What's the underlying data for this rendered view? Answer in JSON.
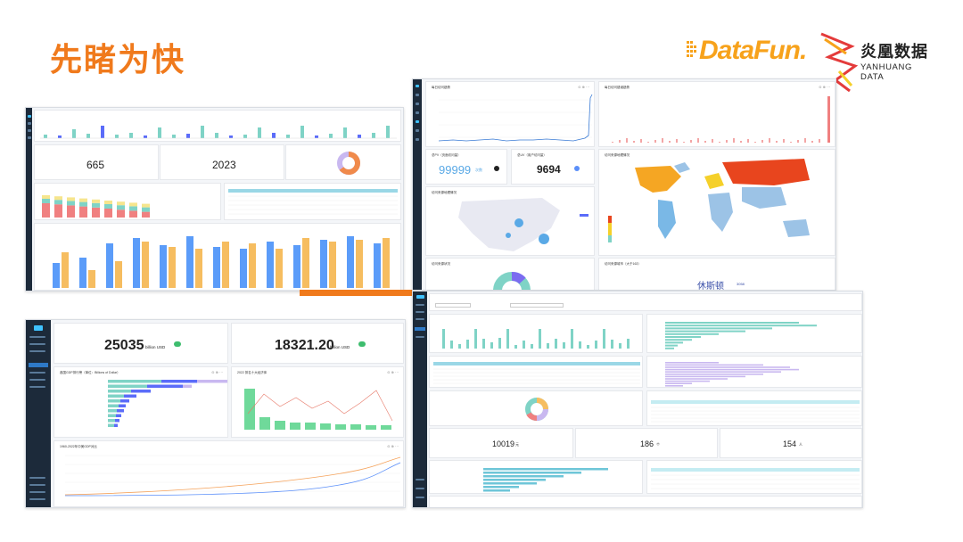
{
  "slide": {
    "title": "先睹为快",
    "logo_datafun": "DataFun.",
    "logo_yh_cn": "炎凰数据",
    "logo_yh_en": "YANHUANG DATA"
  },
  "shot1": {
    "kpi_left": "665",
    "kpi_right": "2023",
    "colors": [
      "#7fd3c6",
      "#5b8ff9",
      "#f6bd60",
      "#f08080"
    ]
  },
  "shot2": {
    "panel_daily_visits": "每日访问趋势",
    "panel_daily_errors": "每日访问错误趋势",
    "pv_label": "总PV（页面访问量）",
    "pv_value": "99999",
    "pv_unit": "次数",
    "uv_label": "总UV（用户访问量）",
    "uv_value": "9694",
    "map_china_title": "访问来源地理情况",
    "map_world_title": "访问来源地理情况",
    "device_title": "访问来源状况",
    "city_title": "访问来源城市（大于163）",
    "city_value": "休斯顿",
    "city_suffix": "3058"
  },
  "shot3": {
    "kpi1_value": "25035",
    "kpi1_unit": "billion USD",
    "kpi2_value": "18321.20",
    "kpi2_unit": "billion USD",
    "panel_gdp_bar": "各国GDP排行榜（单位：Billions of Dollar）",
    "panel_gdp_col": "2022 排名十大经济体",
    "panel_trend": "1960-2022年中美GDP对比"
  },
  "shot4": {
    "kpi1_value": "10019",
    "kpi1_unit": "元",
    "kpi2_value": "186",
    "kpi2_unit": "个",
    "kpi3_value": "154",
    "kpi3_unit": "人"
  }
}
